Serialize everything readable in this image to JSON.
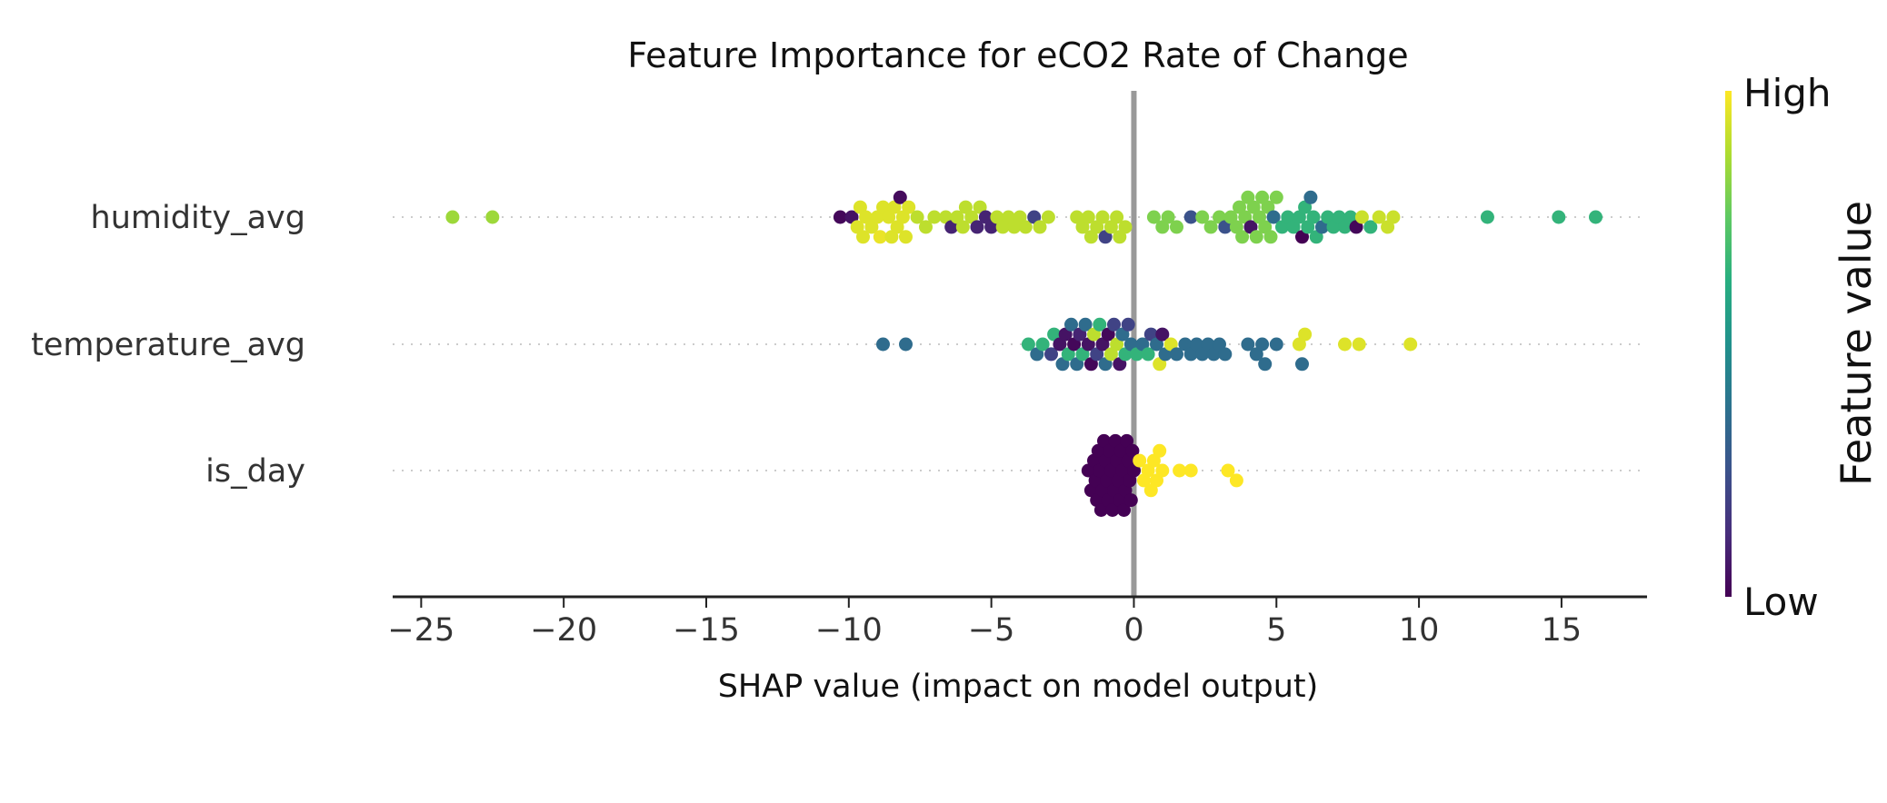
{
  "chart_data": {
    "type": "scatter",
    "subtype": "shap-beeswarm",
    "title": "Feature Importance for eCO2 Rate of Change",
    "xlabel": "SHAP value (impact on model output)",
    "ylabel": "",
    "xlim": [
      -26,
      18
    ],
    "xticks": [
      -25,
      -20,
      -15,
      -10,
      -5,
      0,
      5,
      10,
      15
    ],
    "xtick_labels": [
      "−25",
      "−20",
      "−15",
      "−10",
      "−5",
      "0",
      "5",
      "10",
      "15"
    ],
    "features": [
      "humidity_avg",
      "temperature_avg",
      "is_day"
    ],
    "colorbar": {
      "high_label": "High",
      "low_label": "Low",
      "label": "Feature value",
      "colormap": "viridis"
    },
    "grid": false,
    "series": [
      {
        "name": "humidity_avg",
        "points": [
          {
            "x": -23.9,
            "v": 0.85
          },
          {
            "x": -22.5,
            "v": 0.85
          },
          {
            "x": -10.3,
            "v": 0.02
          },
          {
            "x": -9.9,
            "v": 0.05
          },
          {
            "x": -9.7,
            "v": 0.95
          },
          {
            "x": -9.6,
            "v": 0.95
          },
          {
            "x": -9.5,
            "v": 0.95
          },
          {
            "x": -9.4,
            "v": 0.95
          },
          {
            "x": -9.2,
            "v": 0.95
          },
          {
            "x": -9.0,
            "v": 0.95
          },
          {
            "x": -8.9,
            "v": 0.97
          },
          {
            "x": -8.8,
            "v": 0.95
          },
          {
            "x": -8.6,
            "v": 0.95
          },
          {
            "x": -8.5,
            "v": 0.95
          },
          {
            "x": -8.4,
            "v": 0.95
          },
          {
            "x": -8.3,
            "v": 0.95
          },
          {
            "x": -8.2,
            "v": 0.03
          },
          {
            "x": -8.1,
            "v": 0.95
          },
          {
            "x": -8.0,
            "v": 0.95
          },
          {
            "x": -7.9,
            "v": 0.95
          },
          {
            "x": -7.6,
            "v": 0.9
          },
          {
            "x": -7.3,
            "v": 0.9
          },
          {
            "x": -7.0,
            "v": 0.9
          },
          {
            "x": -6.6,
            "v": 0.9
          },
          {
            "x": -6.4,
            "v": 0.1
          },
          {
            "x": -6.2,
            "v": 0.9
          },
          {
            "x": -6.0,
            "v": 0.9
          },
          {
            "x": -5.9,
            "v": 0.9
          },
          {
            "x": -5.7,
            "v": 0.9
          },
          {
            "x": -5.5,
            "v": 0.1
          },
          {
            "x": -5.4,
            "v": 0.9
          },
          {
            "x": -5.2,
            "v": 0.1
          },
          {
            "x": -5.0,
            "v": 0.1
          },
          {
            "x": -4.8,
            "v": 0.9
          },
          {
            "x": -4.6,
            "v": 0.9
          },
          {
            "x": -4.4,
            "v": 0.9
          },
          {
            "x": -4.2,
            "v": 0.9
          },
          {
            "x": -4.0,
            "v": 0.9
          },
          {
            "x": -3.8,
            "v": 0.9
          },
          {
            "x": -3.5,
            "v": 0.2
          },
          {
            "x": -3.3,
            "v": 0.9
          },
          {
            "x": -3.0,
            "v": 0.9
          },
          {
            "x": -2.0,
            "v": 0.9
          },
          {
            "x": -1.8,
            "v": 0.9
          },
          {
            "x": -1.6,
            "v": 0.9
          },
          {
            "x": -1.5,
            "v": 0.9
          },
          {
            "x": -1.3,
            "v": 0.9
          },
          {
            "x": -1.1,
            "v": 0.9
          },
          {
            "x": -1.0,
            "v": 0.2
          },
          {
            "x": -0.8,
            "v": 0.9
          },
          {
            "x": -0.6,
            "v": 0.9
          },
          {
            "x": -0.5,
            "v": 0.9
          },
          {
            "x": -0.3,
            "v": 0.9
          },
          {
            "x": 0.7,
            "v": 0.8
          },
          {
            "x": 1.0,
            "v": 0.8
          },
          {
            "x": 1.2,
            "v": 0.8
          },
          {
            "x": 1.5,
            "v": 0.8
          },
          {
            "x": 2.0,
            "v": 0.25
          },
          {
            "x": 2.4,
            "v": 0.8
          },
          {
            "x": 2.7,
            "v": 0.8
          },
          {
            "x": 3.0,
            "v": 0.8
          },
          {
            "x": 3.2,
            "v": 0.25
          },
          {
            "x": 3.4,
            "v": 0.8
          },
          {
            "x": 3.6,
            "v": 0.8
          },
          {
            "x": 3.7,
            "v": 0.8
          },
          {
            "x": 3.8,
            "v": 0.8
          },
          {
            "x": 3.9,
            "v": 0.8
          },
          {
            "x": 4.0,
            "v": 0.8
          },
          {
            "x": 4.1,
            "v": 0.05
          },
          {
            "x": 4.2,
            "v": 0.8
          },
          {
            "x": 4.3,
            "v": 0.8
          },
          {
            "x": 4.4,
            "v": 0.8
          },
          {
            "x": 4.5,
            "v": 0.8
          },
          {
            "x": 4.6,
            "v": 0.8
          },
          {
            "x": 4.7,
            "v": 0.8
          },
          {
            "x": 4.8,
            "v": 0.8
          },
          {
            "x": 4.9,
            "v": 0.35
          },
          {
            "x": 5.0,
            "v": 0.8
          },
          {
            "x": 5.2,
            "v": 0.65
          },
          {
            "x": 5.4,
            "v": 0.65
          },
          {
            "x": 5.6,
            "v": 0.65
          },
          {
            "x": 5.8,
            "v": 0.65
          },
          {
            "x": 5.9,
            "v": 0.0
          },
          {
            "x": 6.0,
            "v": 0.65
          },
          {
            "x": 6.1,
            "v": 0.65
          },
          {
            "x": 6.2,
            "v": 0.35
          },
          {
            "x": 6.3,
            "v": 0.65
          },
          {
            "x": 6.4,
            "v": 0.65
          },
          {
            "x": 6.6,
            "v": 0.35
          },
          {
            "x": 6.8,
            "v": 0.65
          },
          {
            "x": 7.0,
            "v": 0.65
          },
          {
            "x": 7.2,
            "v": 0.65
          },
          {
            "x": 7.4,
            "v": 0.65
          },
          {
            "x": 7.6,
            "v": 0.65
          },
          {
            "x": 7.8,
            "v": 0.02
          },
          {
            "x": 8.0,
            "v": 0.92
          },
          {
            "x": 8.3,
            "v": 0.65
          },
          {
            "x": 8.6,
            "v": 0.92
          },
          {
            "x": 8.9,
            "v": 0.92
          },
          {
            "x": 9.1,
            "v": 0.92
          },
          {
            "x": 12.4,
            "v": 0.65
          },
          {
            "x": 14.9,
            "v": 0.65
          },
          {
            "x": 16.2,
            "v": 0.65
          }
        ]
      },
      {
        "name": "temperature_avg",
        "points": [
          {
            "x": -8.8,
            "v": 0.35
          },
          {
            "x": -8.0,
            "v": 0.35
          },
          {
            "x": -3.7,
            "v": 0.65
          },
          {
            "x": -3.4,
            "v": 0.35
          },
          {
            "x": -3.2,
            "v": 0.65
          },
          {
            "x": -2.9,
            "v": 0.2
          },
          {
            "x": -2.8,
            "v": 0.65
          },
          {
            "x": -2.6,
            "v": 0.05
          },
          {
            "x": -2.5,
            "v": 0.35
          },
          {
            "x": -2.4,
            "v": 0.05
          },
          {
            "x": -2.3,
            "v": 0.65
          },
          {
            "x": -2.2,
            "v": 0.35
          },
          {
            "x": -2.1,
            "v": 0.02
          },
          {
            "x": -2.0,
            "v": 0.35
          },
          {
            "x": -1.9,
            "v": 0.1
          },
          {
            "x": -1.8,
            "v": 0.65
          },
          {
            "x": -1.7,
            "v": 0.35
          },
          {
            "x": -1.6,
            "v": 0.05
          },
          {
            "x": -1.5,
            "v": 0.02
          },
          {
            "x": -1.4,
            "v": 0.9
          },
          {
            "x": -1.3,
            "v": 0.2
          },
          {
            "x": -1.2,
            "v": 0.65
          },
          {
            "x": -1.1,
            "v": 0.05
          },
          {
            "x": -1.0,
            "v": 0.35
          },
          {
            "x": -0.9,
            "v": 0.02
          },
          {
            "x": -0.8,
            "v": 0.9
          },
          {
            "x": -0.7,
            "v": 0.2
          },
          {
            "x": -0.6,
            "v": 0.9
          },
          {
            "x": -0.5,
            "v": 0.05
          },
          {
            "x": -0.4,
            "v": 0.35
          },
          {
            "x": -0.3,
            "v": 0.65
          },
          {
            "x": -0.2,
            "v": 0.2
          },
          {
            "x": -0.1,
            "v": 0.35
          },
          {
            "x": 0.1,
            "v": 0.65
          },
          {
            "x": 0.3,
            "v": 0.35
          },
          {
            "x": 0.5,
            "v": 0.65
          },
          {
            "x": 0.6,
            "v": 0.2
          },
          {
            "x": 0.8,
            "v": 0.35
          },
          {
            "x": 0.9,
            "v": 0.95
          },
          {
            "x": 1.0,
            "v": 0.05
          },
          {
            "x": 1.1,
            "v": 0.35
          },
          {
            "x": 1.3,
            "v": 0.95
          },
          {
            "x": 1.5,
            "v": 0.35
          },
          {
            "x": 1.8,
            "v": 0.35
          },
          {
            "x": 2.0,
            "v": 0.35
          },
          {
            "x": 2.2,
            "v": 0.35
          },
          {
            "x": 2.4,
            "v": 0.35
          },
          {
            "x": 2.6,
            "v": 0.35
          },
          {
            "x": 2.8,
            "v": 0.35
          },
          {
            "x": 3.0,
            "v": 0.35
          },
          {
            "x": 3.2,
            "v": 0.35
          },
          {
            "x": 4.0,
            "v": 0.35
          },
          {
            "x": 4.3,
            "v": 0.35
          },
          {
            "x": 4.5,
            "v": 0.35
          },
          {
            "x": 4.6,
            "v": 0.35
          },
          {
            "x": 5.0,
            "v": 0.35
          },
          {
            "x": 5.8,
            "v": 0.95
          },
          {
            "x": 5.9,
            "v": 0.35
          },
          {
            "x": 6.0,
            "v": 0.95
          },
          {
            "x": 7.4,
            "v": 0.95
          },
          {
            "x": 7.9,
            "v": 0.95
          },
          {
            "x": 9.7,
            "v": 0.95
          }
        ]
      },
      {
        "name": "is_day",
        "points": [
          {
            "x": -1.6,
            "v": 0.0
          },
          {
            "x": -1.5,
            "v": 0.0
          },
          {
            "x": -1.4,
            "v": 0.0
          },
          {
            "x": -1.35,
            "v": 0.0
          },
          {
            "x": -1.3,
            "v": 0.0
          },
          {
            "x": -1.25,
            "v": 0.0
          },
          {
            "x": -1.2,
            "v": 0.0
          },
          {
            "x": -1.15,
            "v": 0.0
          },
          {
            "x": -1.1,
            "v": 0.0
          },
          {
            "x": -1.05,
            "v": 0.0
          },
          {
            "x": -1.0,
            "v": 0.0
          },
          {
            "x": -0.95,
            "v": 0.0
          },
          {
            "x": -0.9,
            "v": 0.0
          },
          {
            "x": -0.85,
            "v": 0.0
          },
          {
            "x": -0.8,
            "v": 0.0
          },
          {
            "x": -0.75,
            "v": 0.0
          },
          {
            "x": -0.7,
            "v": 0.0
          },
          {
            "x": -0.65,
            "v": 0.0
          },
          {
            "x": -0.6,
            "v": 0.0
          },
          {
            "x": -0.55,
            "v": 0.0
          },
          {
            "x": -0.5,
            "v": 0.0
          },
          {
            "x": -0.45,
            "v": 0.0
          },
          {
            "x": -0.4,
            "v": 0.0
          },
          {
            "x": -0.35,
            "v": 0.0
          },
          {
            "x": -0.3,
            "v": 0.0
          },
          {
            "x": -0.25,
            "v": 0.0
          },
          {
            "x": -0.2,
            "v": 0.0
          },
          {
            "x": -0.15,
            "v": 0.0
          },
          {
            "x": -0.1,
            "v": 0.0
          },
          {
            "x": -0.05,
            "v": 0.0
          },
          {
            "x": 0.0,
            "v": 0.0
          },
          {
            "x": 0.2,
            "v": 1.0
          },
          {
            "x": 0.35,
            "v": 1.0
          },
          {
            "x": 0.5,
            "v": 1.0
          },
          {
            "x": 0.6,
            "v": 1.0
          },
          {
            "x": 0.7,
            "v": 1.0
          },
          {
            "x": 0.8,
            "v": 1.0
          },
          {
            "x": 0.9,
            "v": 1.0
          },
          {
            "x": 1.0,
            "v": 1.0
          },
          {
            "x": 1.6,
            "v": 1.0
          },
          {
            "x": 2.0,
            "v": 1.0
          },
          {
            "x": 3.3,
            "v": 1.0
          },
          {
            "x": 3.6,
            "v": 1.0
          }
        ]
      }
    ]
  }
}
